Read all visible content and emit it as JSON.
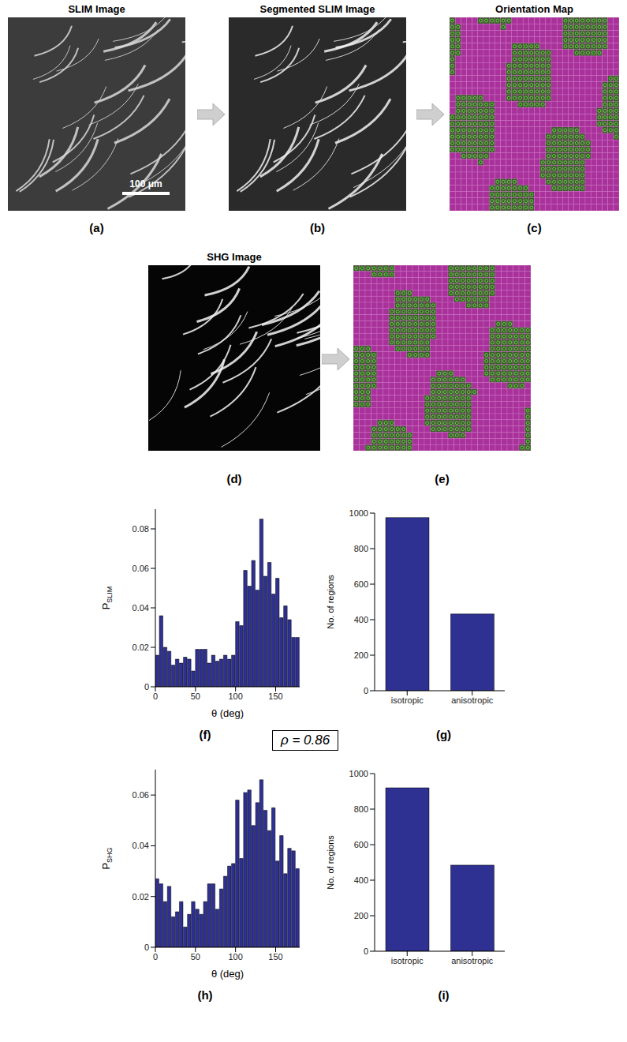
{
  "panels": {
    "a": {
      "label": "(a)",
      "title": "SLIM Image",
      "scale_bar": "100 μm"
    },
    "b": {
      "label": "(b)",
      "title": "Segmented SLIM Image"
    },
    "c": {
      "label": "(c)",
      "title": "Orientation Map"
    },
    "d": {
      "label": "(d)",
      "title": "SHG Image"
    },
    "e": {
      "label": "(e)",
      "title": "Orientation Map"
    }
  },
  "correlation": "ρ = 0.86",
  "chart_data": [
    {
      "panel_label": "(f)",
      "type": "histogram",
      "x_label": "θ (deg)",
      "y_label": "P",
      "y_label_subscript": "SLIM",
      "bins": [
        0,
        5,
        10,
        15,
        20,
        25,
        30,
        35,
        40,
        45,
        50,
        55,
        60,
        65,
        70,
        75,
        80,
        85,
        90,
        95,
        100,
        105,
        110,
        115,
        120,
        125,
        130,
        135,
        140,
        145,
        150,
        155,
        160,
        165,
        170,
        175,
        180
      ],
      "values": [
        0.016,
        0.036,
        0.02,
        0.018,
        0.011,
        0.014,
        0.012,
        0.015,
        0.014,
        0.008,
        0.019,
        0.019,
        0.019,
        0.012,
        0.016,
        0.013,
        0.014,
        0.016,
        0.014,
        0.016,
        0.033,
        0.031,
        0.059,
        0.051,
        0.064,
        0.049,
        0.085,
        0.056,
        0.063,
        0.047,
        0.055,
        0.035,
        0.041,
        0.034,
        0.025,
        0.025
      ],
      "color": "#2e3192",
      "xlim": [
        0,
        180
      ],
      "xticks": [
        0,
        50,
        100,
        150
      ],
      "ylim": [
        0,
        0.09
      ],
      "yticks": [
        0,
        0.02,
        0.04,
        0.06,
        0.08
      ],
      "grid": false
    },
    {
      "panel_label": "(g)",
      "type": "bar",
      "y_label": "No. of regions",
      "categories": [
        "isotropic",
        "anisotropic"
      ],
      "values": [
        975,
        432
      ],
      "color": "#2e3192",
      "ylim": [
        0,
        1000
      ],
      "yticks": [
        0,
        200,
        400,
        600,
        800,
        1000
      ],
      "grid": false
    },
    {
      "panel_label": "(h)",
      "type": "histogram",
      "x_label": "θ (deg)",
      "y_label": "P",
      "y_label_subscript": "SHG",
      "bins": [
        0,
        5,
        10,
        15,
        20,
        25,
        30,
        35,
        40,
        45,
        50,
        55,
        60,
        65,
        70,
        75,
        80,
        85,
        90,
        95,
        100,
        105,
        110,
        115,
        120,
        125,
        130,
        135,
        140,
        145,
        150,
        155,
        160,
        165,
        170,
        175,
        180
      ],
      "values": [
        0.027,
        0.025,
        0.018,
        0.024,
        0.012,
        0.014,
        0.018,
        0.008,
        0.013,
        0.018,
        0.015,
        0.013,
        0.018,
        0.025,
        0.025,
        0.015,
        0.023,
        0.028,
        0.032,
        0.033,
        0.058,
        0.035,
        0.061,
        0.062,
        0.048,
        0.057,
        0.066,
        0.054,
        0.046,
        0.055,
        0.034,
        0.044,
        0.029,
        0.039,
        0.038,
        0.031
      ],
      "color": "#2e3192",
      "xlim": [
        0,
        180
      ],
      "xticks": [
        0,
        50,
        100,
        150
      ],
      "ylim": [
        0,
        0.07
      ],
      "yticks": [
        0,
        0.02,
        0.04,
        0.06
      ],
      "grid": false
    },
    {
      "panel_label": "(i)",
      "type": "bar",
      "y_label": "No. of regions",
      "categories": [
        "isotropic",
        "anisotropic"
      ],
      "values": [
        920,
        485
      ],
      "color": "#2e3192",
      "ylim": [
        0,
        1000
      ],
      "yticks": [
        0,
        200,
        400,
        600,
        800,
        1000
      ],
      "grid": false
    }
  ]
}
